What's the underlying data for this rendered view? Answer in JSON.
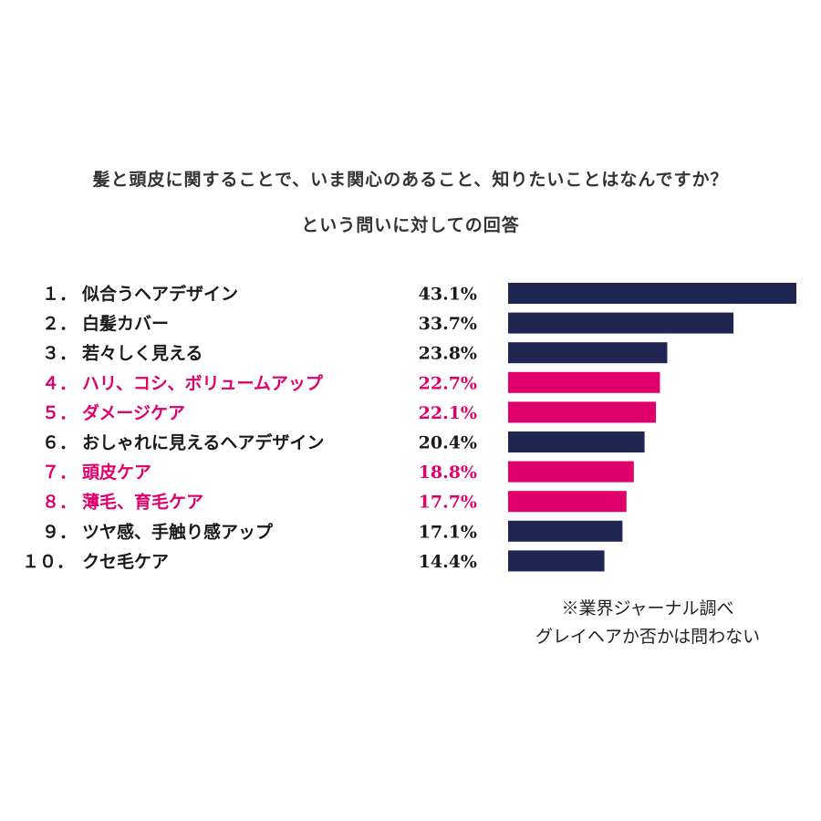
{
  "title_line1": "髪と頭皮に関することで、いま関心のあること、知りたいことはなんですか？",
  "title_line2": "という問いに対しての回答",
  "colors": {
    "navy": "#1f2652",
    "pink": "#e0006b",
    "text_dark": "#1a1a1a"
  },
  "chart_data": {
    "type": "bar",
    "orientation": "horizontal",
    "items": [
      {
        "rank": "１．",
        "label": "似合うヘアデザイン",
        "value": 43.1,
        "value_label": "43.1%",
        "highlight": false
      },
      {
        "rank": "２．",
        "label": "白髪カバー",
        "value": 33.7,
        "value_label": "33.7%",
        "highlight": false
      },
      {
        "rank": "３．",
        "label": "若々しく見える",
        "value": 23.8,
        "value_label": "23.8%",
        "highlight": false
      },
      {
        "rank": "４．",
        "label": "ハリ、コシ、ボリュームアップ",
        "value": 22.7,
        "value_label": "22.7%",
        "highlight": true
      },
      {
        "rank": "５．",
        "label": "ダメージケア",
        "value": 22.1,
        "value_label": "22.1%",
        "highlight": true
      },
      {
        "rank": "６．",
        "label": "おしゃれに見えるヘアデザイン",
        "value": 20.4,
        "value_label": "20.4%",
        "highlight": false
      },
      {
        "rank": "７．",
        "label": "頭皮ケア",
        "value": 18.8,
        "value_label": "18.8%",
        "highlight": true
      },
      {
        "rank": "８．",
        "label": "薄毛、育毛ケア",
        "value": 17.7,
        "value_label": "17.7%",
        "highlight": true
      },
      {
        "rank": "９．",
        "label": "ツヤ感、手触り感アップ",
        "value": 17.1,
        "value_label": "17.1%",
        "highlight": false
      },
      {
        "rank": "１０．",
        "label": "クセ毛ケア",
        "value": 14.4,
        "value_label": "14.4%",
        "highlight": false
      }
    ],
    "xlim": [
      0,
      43.1
    ],
    "axes_shown": false,
    "grid": false
  },
  "note_line1": "※業界ジャーナル調べ",
  "note_line2": "グレイヘアか否かは問わない"
}
